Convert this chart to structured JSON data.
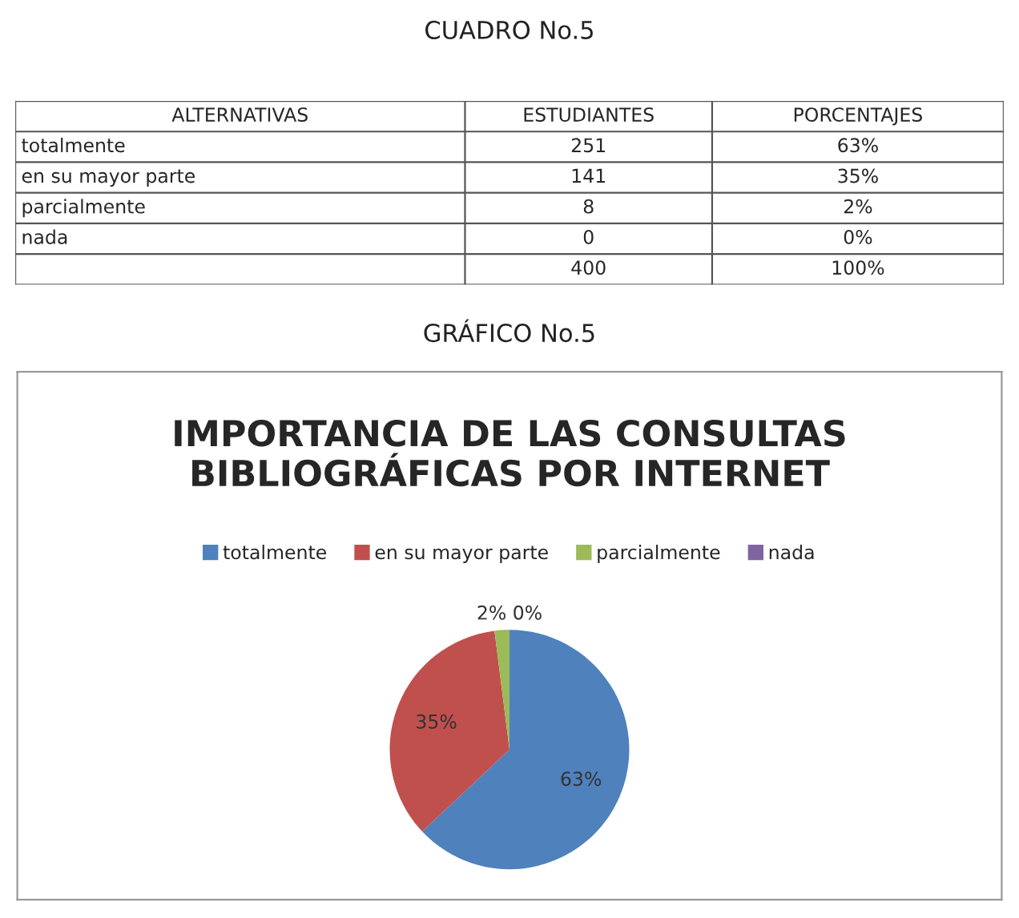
{
  "chart_data": [
    {
      "type": "other",
      "title": "CUADRO No.5",
      "categories": [
        "ALTERNATIVAS",
        "ESTUDIANTES",
        "PORCENTAJES"
      ],
      "annotations": [
        "totalmente",
        "251",
        "63%",
        "en su mayor parte",
        "141",
        "35%",
        "parcialmente",
        "8",
        "2%",
        "nada",
        "0",
        "0%",
        "400",
        "100%"
      ]
    },
    {
      "type": "pie",
      "title": "IMPORTANCIA DE LAS CONSULTAS BIBLIOGRÁFICAS POR INTERNET",
      "annotations": [
        "GRÁFICO No.5"
      ],
      "categories": [
        "totalmente",
        "en su mayor parte",
        "parcialmente",
        "nada"
      ],
      "values": [
        63,
        35,
        2,
        0
      ],
      "value_labels": [
        "63%",
        "35%",
        "2%",
        "0%"
      ],
      "colors": [
        "#4f81bd",
        "#c0504d",
        "#9bbb59",
        "#8064a2"
      ],
      "legend": "top"
    }
  ]
}
